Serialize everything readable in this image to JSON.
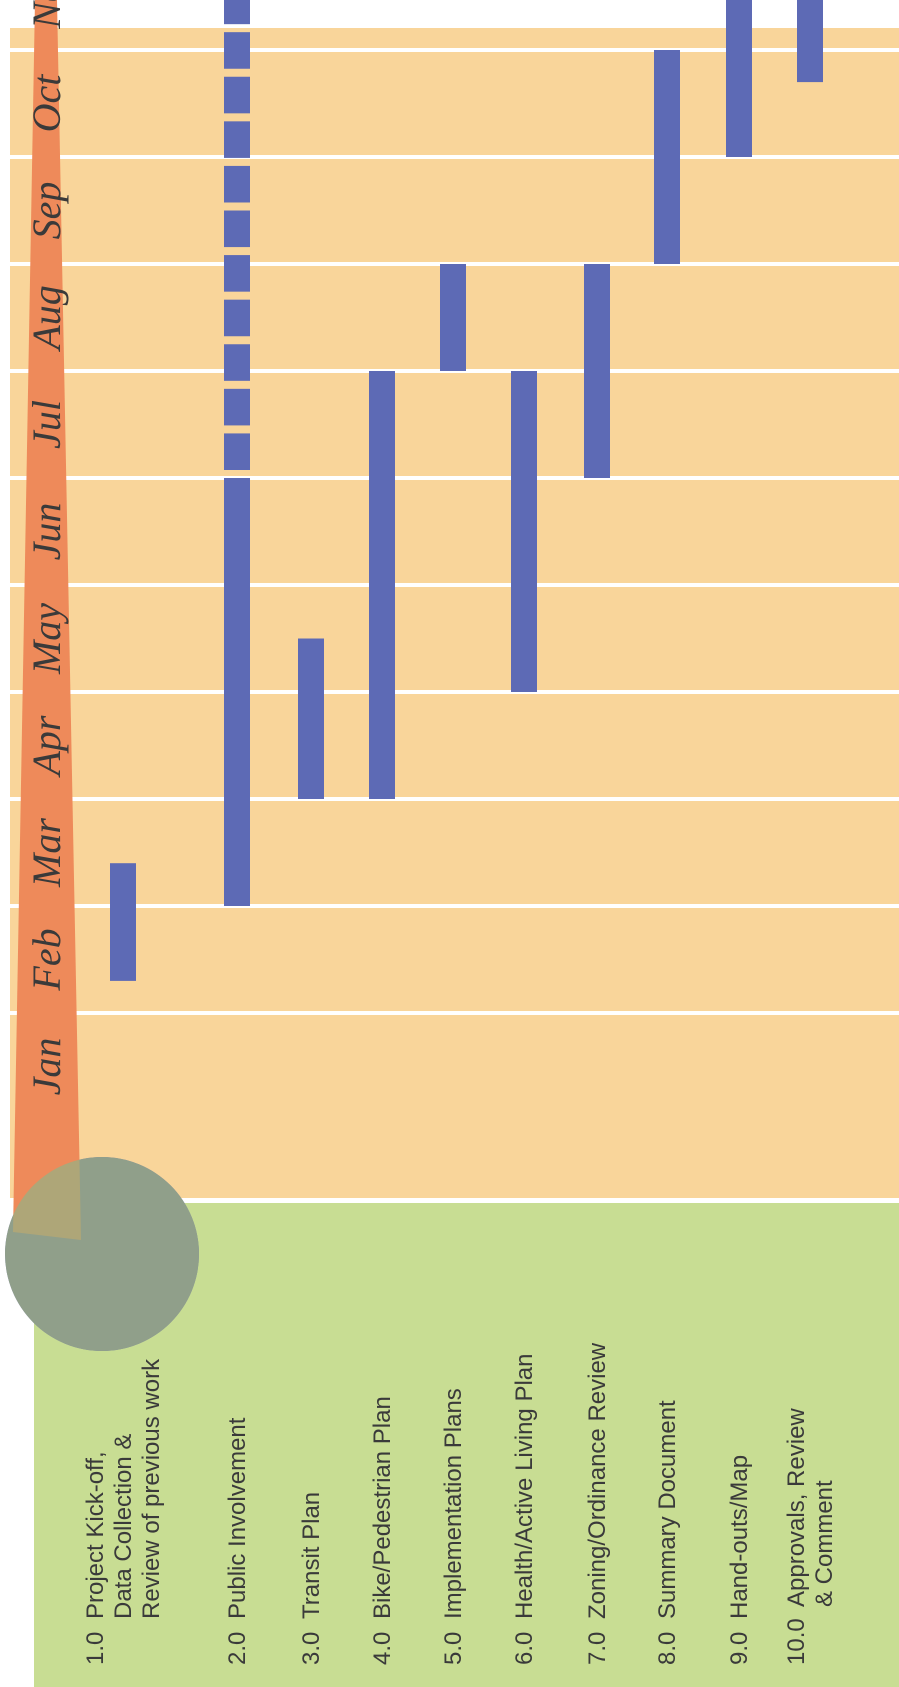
{
  "colors": {
    "chart_bg": "#F9D59A",
    "label_bg": "#C8DD93",
    "bar": "#5D6AB5",
    "month_banner": "#EE8A5A",
    "grid": "#FFFFFF",
    "circle_overlay": "#9EAC80",
    "circle_blue": "#5D6AB5",
    "text": "#3A3A3A"
  },
  "chart_data": {
    "type": "gantt",
    "orientation": "rotated-90-ccw",
    "categories": [
      "Jan",
      "Feb",
      "Mar",
      "Apr",
      "May",
      "Jun",
      "Jul",
      "Aug",
      "Sep",
      "Oct",
      "Nov"
    ],
    "tasks": [
      {
        "number": "1.0",
        "lines": [
          "Project Kick-off,",
          "Data Collection &",
          "Review of previous work"
        ],
        "start": 1.3,
        "end": 2.4
      },
      {
        "number": "2.0",
        "lines": [
          "Public Involvement"
        ],
        "start": 2.0,
        "end": 6.0,
        "dashed_start": 6.0,
        "dashed_end": 11.0
      },
      {
        "number": "3.0",
        "lines": [
          "Transit Plan"
        ],
        "start": 3.0,
        "end": 4.5
      },
      {
        "number": "4.0",
        "lines": [
          "Bike/Pedestrian Plan"
        ],
        "start": 3.0,
        "end": 7.0
      },
      {
        "number": "5.0",
        "lines": [
          "Implementation Plans"
        ],
        "start": 7.0,
        "end": 8.0
      },
      {
        "number": "6.0",
        "lines": [
          "Health/Active Living Plan"
        ],
        "start": 4.0,
        "end": 7.0
      },
      {
        "number": "7.0",
        "lines": [
          "Zoning/Ordinance Review"
        ],
        "start": 6.0,
        "end": 8.0
      },
      {
        "number": "8.0",
        "lines": [
          "Summary Document"
        ],
        "start": 8.0,
        "end": 10.0
      },
      {
        "number": "9.0",
        "lines": [
          "Hand-outs/Map"
        ],
        "start": 9.0,
        "end": 11.0
      },
      {
        "number": "10.0",
        "lines": [
          "Approvals, Review",
          "& Comment"
        ],
        "start": 9.7,
        "end": 11.0
      }
    ],
    "xlim": [
      0,
      11
    ],
    "grid": true
  }
}
